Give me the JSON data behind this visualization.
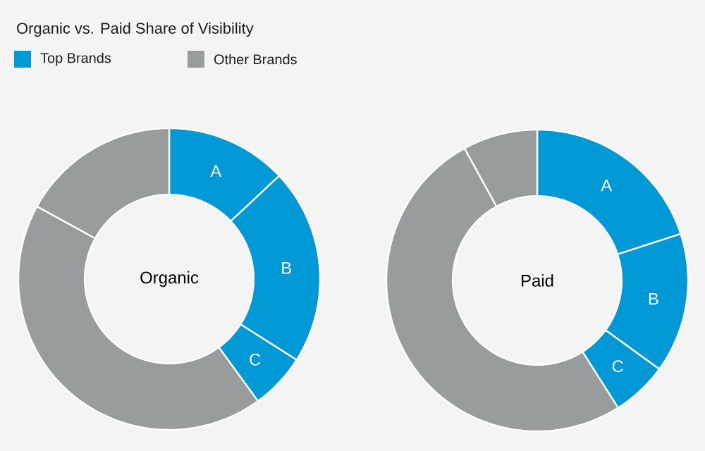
{
  "chart_data": [
    {
      "type": "donut",
      "title": "Organic vs. Paid Share of Visibility",
      "annotations": [
        "Organic",
        "Top Brands",
        "Other Brands"
      ],
      "categories": [
        "A",
        "B",
        "C",
        null,
        null
      ],
      "values": [
        13,
        21,
        6,
        43,
        17
      ],
      "colors": [
        "#0099d6",
        "#0099d6",
        "#0099d6",
        "#999c9c",
        "#999c9c"
      ]
    },
    {
      "type": "donut",
      "annotations": [
        "Paid"
      ],
      "categories": [
        "A",
        "B",
        "C",
        null,
        null
      ],
      "values": [
        20,
        15,
        6,
        51,
        8
      ],
      "colors": [
        "#0099d6",
        "#0099d6",
        "#0099d6",
        "#999c9c",
        "#999c9c"
      ]
    }
  ]
}
